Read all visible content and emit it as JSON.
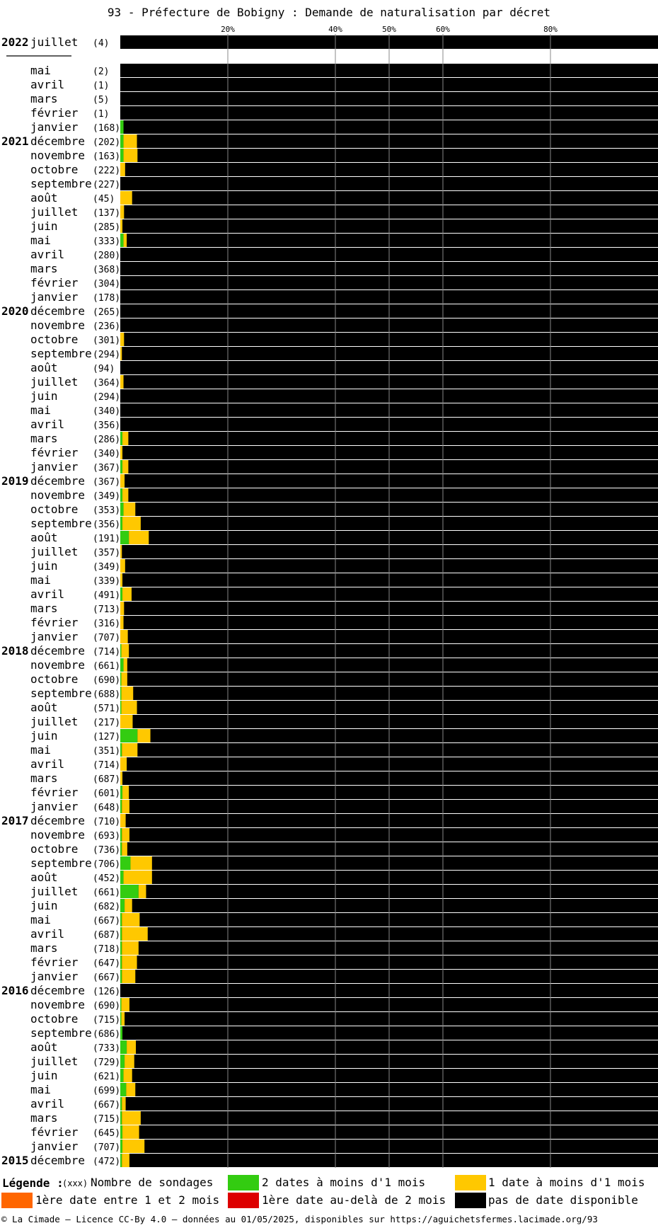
{
  "title": "93 - Préfecture de Bobigny : Demande de naturalisation par décret",
  "colors": {
    "green": "#33cc11",
    "yellow": "#ffc800",
    "orange": "#ff6600",
    "red": "#dd0000",
    "black": "#000000",
    "grid": "#888888"
  },
  "chart_data": {
    "type": "bar",
    "orientation": "horizontal-stacked-100",
    "axis_ticks": [
      "20%",
      "40%",
      "50%",
      "60%",
      "80%"
    ],
    "xlim": [
      0,
      100
    ],
    "grid": true,
    "legend_position": "bottom",
    "series_names": [
      "2 dates à moins d'1 mois",
      "1 date à moins d'1 mois",
      "1ère date entre 1 et 2 mois",
      "1ère date au-delà de 2 mois",
      "pas de date disponible"
    ],
    "rows": [
      {
        "year": "2022",
        "month": "juillet",
        "count": "(4)",
        "green": 0,
        "yellow": 0
      },
      {
        "separator": true
      },
      {
        "month": "mai",
        "count": "(2)",
        "green": 0,
        "yellow": 0
      },
      {
        "month": "avril",
        "count": "(1)",
        "green": 0,
        "yellow": 0
      },
      {
        "month": "mars",
        "count": "(5)",
        "green": 0,
        "yellow": 0
      },
      {
        "month": "février",
        "count": "(1)",
        "green": 0,
        "yellow": 0
      },
      {
        "month": "janvier",
        "count": "(168)",
        "green": 0.6,
        "yellow": 0
      },
      {
        "year": "2021",
        "month": "décembre",
        "count": "(202)",
        "green": 0.6,
        "yellow": 2.5
      },
      {
        "month": "novembre",
        "count": "(163)",
        "green": 0.6,
        "yellow": 2.6
      },
      {
        "month": "octobre",
        "count": "(222)",
        "green": 0,
        "yellow": 0.9
      },
      {
        "month": "septembre",
        "count": "(227)",
        "green": 0,
        "yellow": 0
      },
      {
        "month": "août",
        "count": "(45)",
        "green": 0,
        "yellow": 2.2
      },
      {
        "month": "juillet",
        "count": "(137)",
        "green": 0,
        "yellow": 0.7
      },
      {
        "month": "juin",
        "count": "(285)",
        "green": 0,
        "yellow": 0.4
      },
      {
        "month": "mai",
        "count": "(333)",
        "green": 0.6,
        "yellow": 0.6
      },
      {
        "month": "avril",
        "count": "(280)",
        "green": 0,
        "yellow": 0
      },
      {
        "month": "mars",
        "count": "(368)",
        "green": 0,
        "yellow": 0
      },
      {
        "month": "février",
        "count": "(304)",
        "green": 0,
        "yellow": 0
      },
      {
        "month": "janvier",
        "count": "(178)",
        "green": 0,
        "yellow": 0
      },
      {
        "year": "2020",
        "month": "décembre",
        "count": "(265)",
        "green": 0,
        "yellow": 0
      },
      {
        "month": "novembre",
        "count": "(236)",
        "green": 0,
        "yellow": 0
      },
      {
        "month": "octobre",
        "count": "(301)",
        "green": 0,
        "yellow": 0.7
      },
      {
        "month": "septembre",
        "count": "(294)",
        "green": 0,
        "yellow": 0.3
      },
      {
        "month": "août",
        "count": "(94)",
        "green": 0,
        "yellow": 0
      },
      {
        "month": "juillet",
        "count": "(364)",
        "green": 0,
        "yellow": 0.6
      },
      {
        "month": "juin",
        "count": "(294)",
        "green": 0,
        "yellow": 0
      },
      {
        "month": "mai",
        "count": "(340)",
        "green": 0,
        "yellow": 0
      },
      {
        "month": "avril",
        "count": "(356)",
        "green": 0,
        "yellow": 0
      },
      {
        "month": "mars",
        "count": "(286)",
        "green": 0.4,
        "yellow": 1.1
      },
      {
        "month": "février",
        "count": "(340)",
        "green": 0,
        "yellow": 0.4
      },
      {
        "month": "janvier",
        "count": "(367)",
        "green": 0.4,
        "yellow": 1.1
      },
      {
        "year": "2019",
        "month": "décembre",
        "count": "(367)",
        "green": 0,
        "yellow": 0.8
      },
      {
        "month": "novembre",
        "count": "(349)",
        "green": 0.4,
        "yellow": 1.1
      },
      {
        "month": "octobre",
        "count": "(353)",
        "green": 0.6,
        "yellow": 2.2
      },
      {
        "month": "septembre",
        "count": "(356)",
        "green": 0.4,
        "yellow": 3.4
      },
      {
        "month": "août",
        "count": "(191)",
        "green": 1.6,
        "yellow": 3.7
      },
      {
        "month": "juillet",
        "count": "(357)",
        "green": 0,
        "yellow": 0.3
      },
      {
        "month": "juin",
        "count": "(349)",
        "green": 0,
        "yellow": 0.9
      },
      {
        "month": "mai",
        "count": "(339)",
        "green": 0,
        "yellow": 0.4
      },
      {
        "month": "avril",
        "count": "(491)",
        "green": 0.4,
        "yellow": 1.7
      },
      {
        "month": "mars",
        "count": "(713)",
        "green": 0,
        "yellow": 0.7
      },
      {
        "month": "février",
        "count": "(316)",
        "green": 0,
        "yellow": 0.6
      },
      {
        "month": "janvier",
        "count": "(707)",
        "green": 0,
        "yellow": 1.4
      },
      {
        "year": "2018",
        "month": "décembre",
        "count": "(714)",
        "green": 0.2,
        "yellow": 1.4
      },
      {
        "month": "novembre",
        "count": "(661)",
        "green": 0.6,
        "yellow": 0.7
      },
      {
        "month": "octobre",
        "count": "(690)",
        "green": 0.2,
        "yellow": 1.1
      },
      {
        "month": "septembre",
        "count": "(688)",
        "green": 0.2,
        "yellow": 2.2
      },
      {
        "month": "août",
        "count": "(571)",
        "green": 0.2,
        "yellow": 2.9
      },
      {
        "month": "juillet",
        "count": "(217)",
        "green": 0,
        "yellow": 2.3
      },
      {
        "month": "juin",
        "count": "(127)",
        "green": 3.2,
        "yellow": 2.4
      },
      {
        "month": "mai",
        "count": "(351)",
        "green": 0.3,
        "yellow": 2.9
      },
      {
        "month": "avril",
        "count": "(714)",
        "green": 0,
        "yellow": 1.2
      },
      {
        "month": "mars",
        "count": "(687)",
        "green": 0,
        "yellow": 0.4
      },
      {
        "month": "février",
        "count": "(601)",
        "green": 0.4,
        "yellow": 1.2
      },
      {
        "month": "janvier",
        "count": "(648)",
        "green": 0.3,
        "yellow": 1.4
      },
      {
        "year": "2017",
        "month": "décembre",
        "count": "(710)",
        "green": 0,
        "yellow": 1.0
      },
      {
        "month": "novembre",
        "count": "(693)",
        "green": 0.3,
        "yellow": 1.4
      },
      {
        "month": "octobre",
        "count": "(736)",
        "green": 0.3,
        "yellow": 1.0
      },
      {
        "month": "septembre",
        "count": "(706)",
        "green": 1.9,
        "yellow": 4.0
      },
      {
        "month": "août",
        "count": "(452)",
        "green": 0.6,
        "yellow": 5.3
      },
      {
        "month": "juillet",
        "count": "(661)",
        "green": 3.4,
        "yellow": 1.4
      },
      {
        "month": "juin",
        "count": "(682)",
        "green": 0.8,
        "yellow": 1.4
      },
      {
        "month": "mai",
        "count": "(667)",
        "green": 0.3,
        "yellow": 3.3
      },
      {
        "month": "avril",
        "count": "(687)",
        "green": 0.3,
        "yellow": 4.8
      },
      {
        "month": "mars",
        "count": "(718)",
        "green": 0.3,
        "yellow": 3.1
      },
      {
        "month": "février",
        "count": "(647)",
        "green": 0.3,
        "yellow": 2.8
      },
      {
        "month": "janvier",
        "count": "(667)",
        "green": 0.3,
        "yellow": 2.5
      },
      {
        "year": "2016",
        "month": "décembre",
        "count": "(126)",
        "green": 0,
        "yellow": 0
      },
      {
        "month": "novembre",
        "count": "(690)",
        "green": 0.2,
        "yellow": 1.5
      },
      {
        "month": "octobre",
        "count": "(715)",
        "green": 0.2,
        "yellow": 0.6
      },
      {
        "month": "septembre",
        "count": "(686)",
        "green": 0.4,
        "yellow": 0
      },
      {
        "month": "août",
        "count": "(733)",
        "green": 1.2,
        "yellow": 1.7
      },
      {
        "month": "juillet",
        "count": "(729)",
        "green": 0.8,
        "yellow": 1.8
      },
      {
        "month": "juin",
        "count": "(621)",
        "green": 0.6,
        "yellow": 1.6
      },
      {
        "month": "mai",
        "count": "(699)",
        "green": 1.1,
        "yellow": 1.7
      },
      {
        "month": "avril",
        "count": "(667)",
        "green": 0.3,
        "yellow": 0.7
      },
      {
        "month": "mars",
        "count": "(715)",
        "green": 0.3,
        "yellow": 3.5
      },
      {
        "month": "février",
        "count": "(645)",
        "green": 0.4,
        "yellow": 3.1
      },
      {
        "month": "janvier",
        "count": "(707)",
        "green": 0.4,
        "yellow": 4.1
      },
      {
        "year": "2015",
        "month": "décembre",
        "count": "(472)",
        "green": 0.3,
        "yellow": 1.4
      }
    ]
  },
  "legend": {
    "title": "Légende :",
    "count_marker": "(xxx)",
    "count_label": "Nombre de sondages",
    "items": [
      {
        "label": "2 dates à moins d'1 mois",
        "color": "#33cc11"
      },
      {
        "label": "1 date à moins d'1 mois",
        "color": "#ffc800"
      },
      {
        "label": "1ère date entre 1 et 2 mois",
        "color": "#ff6600"
      },
      {
        "label": "1ère date au-delà de 2 mois",
        "color": "#dd0000"
      },
      {
        "label": "pas de date disponible",
        "color": "#000000"
      }
    ]
  },
  "footer": "© La Cimade — Licence CC-By 4.0 — données au 01/05/2025, disponibles sur https://aguichetsfermes.lacimade.org/93"
}
